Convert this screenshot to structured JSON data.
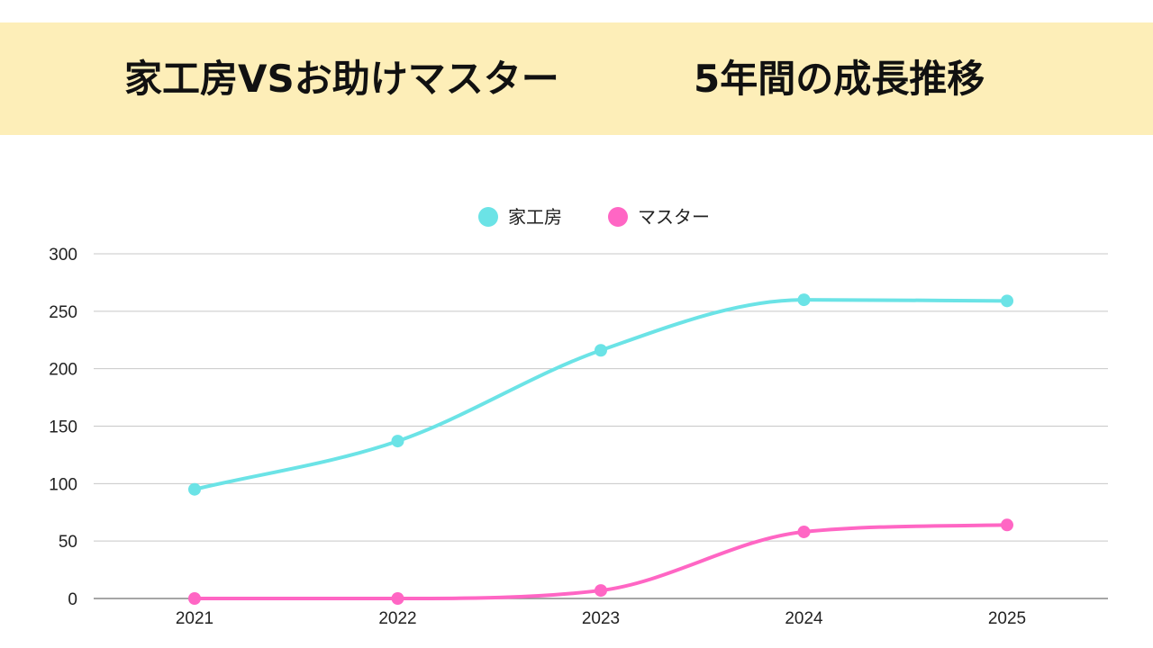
{
  "header": {
    "title_left": "家工房VSお助けマスター",
    "title_right": "5年間の成長推移"
  },
  "colors": {
    "banner": "#fdeeb8",
    "series_kakobo": "#6be3e6",
    "series_master": "#ff66c4",
    "gridline": "#c8c8c8",
    "axis": "#888888"
  },
  "chart_data": {
    "type": "line",
    "title": "家工房VSお助けマスター　5年間の成長推移",
    "categories": [
      "2021",
      "2022",
      "2023",
      "2024",
      "2025"
    ],
    "series": [
      {
        "name": "家工房",
        "values": [
          95,
          137,
          216,
          260,
          259
        ]
      },
      {
        "name": "マスター",
        "values": [
          0,
          0,
          7,
          58,
          64
        ]
      }
    ],
    "ylim": [
      0,
      300
    ],
    "yticks": [
      "0",
      "50",
      "100",
      "150",
      "200",
      "250",
      "300"
    ],
    "xlabel": "",
    "ylabel": "",
    "grid": true,
    "legend": "top-center",
    "smooth": true
  }
}
